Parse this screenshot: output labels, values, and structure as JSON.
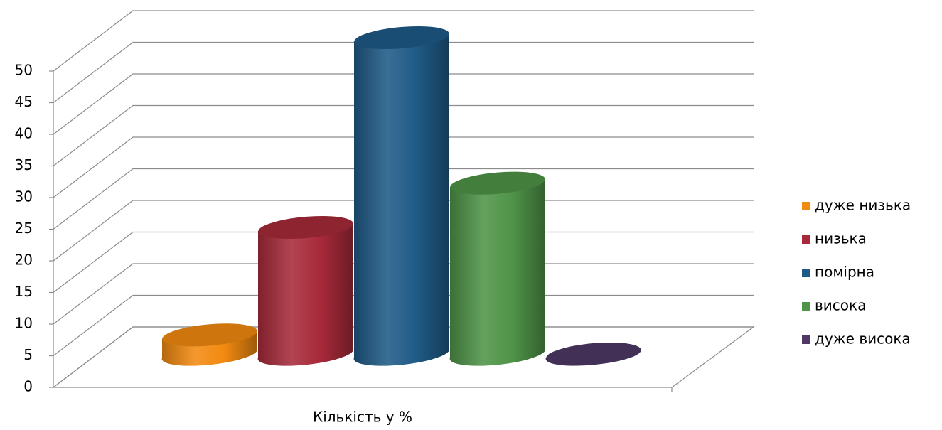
{
  "chart_data": {
    "type": "bar3d",
    "categories": [
      "Кількість у %"
    ],
    "series": [
      {
        "name": "дуже низька",
        "color": "#f28a10",
        "values": [
          3
        ]
      },
      {
        "name": "низька",
        "color": "#a82a3a",
        "values": [
          20
        ]
      },
      {
        "name": "помірна",
        "color": "#1f5b87",
        "values": [
          50
        ]
      },
      {
        "name": "висока",
        "color": "#4f9448",
        "values": [
          27
        ]
      },
      {
        "name": "дуже висока",
        "color": "#4f3866",
        "values": [
          0
        ]
      }
    ],
    "ylim": [
      0,
      50
    ],
    "yticks": [
      0,
      5,
      10,
      15,
      20,
      25,
      30,
      35,
      40,
      45,
      50
    ],
    "grid": true,
    "legend": "right"
  }
}
